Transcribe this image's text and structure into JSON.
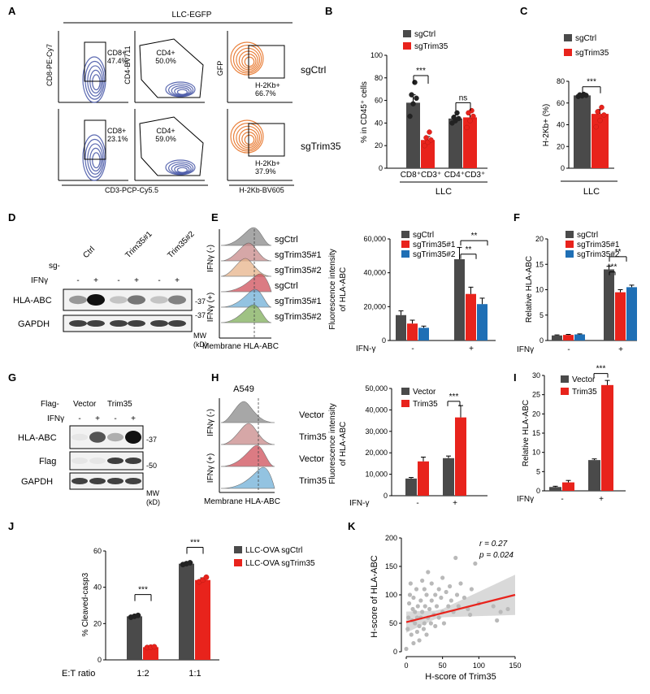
{
  "colors": {
    "ctrl": "#4a4a4a",
    "ko": "#e8231c",
    "ko2": "#1f6fb5",
    "flow_blue": "#4a5aa8",
    "flow_orange": "#e8752a",
    "flow_gray": "#8a8a8a",
    "flow_pink": "#c98a8a",
    "flow_peach": "#e8b48a",
    "flow_red": "#d0505a",
    "flow_lblue": "#6fb0d8",
    "flow_green": "#7fae5a",
    "fit_band": "#cfcfcf",
    "scatter_pt": "#b9b9b9"
  },
  "panels": {
    "A": {
      "letter": "A",
      "header": "LLC-EGFP",
      "ylabels": [
        "CD8-PE-Cy7",
        "CD4-BV711",
        "GFP"
      ],
      "xlabels": [
        "CD3-PCP-Cy5.5",
        "H-2Kb-BV605"
      ],
      "row_labels": [
        "sgCtrl",
        "sgTrim35"
      ],
      "gates": [
        [
          "CD8+",
          "47.4%"
        ],
        [
          "CD4+",
          "50.0%"
        ],
        [
          "H-2Kb+",
          "66.7%"
        ],
        [
          "CD8+",
          "23.1%"
        ],
        [
          "CD4+",
          "59.0%"
        ],
        [
          "H-2Kb+",
          "37.9%"
        ]
      ]
    },
    "B": {
      "letter": "B",
      "ylabel": "% in CD45⁺ cells",
      "legend": [
        "sgCtrl",
        "sgTrim35"
      ],
      "groups": [
        "CD8⁺CD3⁺",
        "CD4⁺CD3⁺"
      ],
      "bottom": "LLC",
      "sig": [
        "***",
        "ns"
      ],
      "ticks": [
        "0",
        "20",
        "40",
        "60",
        "80",
        "100"
      ]
    },
    "C": {
      "letter": "C",
      "ylabel": "H-2Kb+ (%)",
      "legend": [
        "sgCtrl",
        "sgTrim35"
      ],
      "bottom": "LLC",
      "sig": "***",
      "ticks": [
        "0",
        "20",
        "40",
        "60",
        "80"
      ]
    },
    "D": {
      "letter": "D",
      "lanes": [
        "Ctrl",
        "Trim35#1",
        "Trim35#2"
      ],
      "sg": "sg-",
      "ifn": "IFNγ",
      "pm": [
        "-",
        "+",
        "-",
        "+",
        "-",
        "+"
      ],
      "bands": [
        "HLA-ABC",
        "GAPDH"
      ],
      "mw": [
        "37",
        "37"
      ],
      "mw_label": "MW",
      "mw_unit": "(kD)"
    },
    "E": {
      "letter": "E",
      "hist_labels": [
        "sgCtrl",
        "sgTrim35#1",
        "sgTrim35#2",
        "sgCtrl",
        "sgTrim35#1",
        "sgTrim35#2"
      ],
      "side": [
        "IFNγ (-)",
        "IFNγ (+)"
      ],
      "xlabel": "Membrane HLA-ABC",
      "ylabel1": "Fluorescence intensity",
      "ylabel2": "of HLA-ABC",
      "legend": [
        "sgCtrl",
        "sgTrim35#1",
        "sgTrim35#2"
      ],
      "ticks": [
        "0",
        "20,000",
        "40,000",
        "60,000"
      ],
      "xaxis": "IFN-γ",
      "pm": [
        "-",
        "+"
      ],
      "sig": [
        "**",
        "**"
      ]
    },
    "F": {
      "letter": "F",
      "ylabel": "Relative HLA-ABC",
      "legend": [
        "sgCtrl",
        "sgTrim35#1",
        "sgTrim35#2"
      ],
      "ticks": [
        "0",
        "5",
        "10",
        "15",
        "20"
      ],
      "xaxis": "IFNγ",
      "pm": [
        "-",
        "+"
      ],
      "sig": [
        "***",
        "**"
      ]
    },
    "G": {
      "letter": "G",
      "flag": "Flag-",
      "lanes": [
        "Vector",
        "Trim35"
      ],
      "ifn": "IFNγ",
      "pm": [
        "-",
        "+",
        "-",
        "+"
      ],
      "bands": [
        "HLA-ABC",
        "Flag",
        "GAPDH"
      ],
      "mw": [
        "37",
        "50"
      ],
      "mw_label": "MW",
      "mw_unit": "(kD)"
    },
    "H": {
      "letter": "H",
      "title": "A549",
      "hist_labels": [
        "Vector",
        "Trim35",
        "Vector",
        "Trim35"
      ],
      "side": [
        "IFNγ (-)",
        "IFNγ (+)"
      ],
      "xlabel": "Membrane HLA-ABC",
      "ylabel1": "Fluorescence intensity",
      "ylabel2": "of HLA-ABC",
      "legend": [
        "Vector",
        "Trim35"
      ],
      "ticks": [
        "0",
        "10,000",
        "20,000",
        "30,000",
        "40,000",
        "50,000"
      ],
      "xaxis": "IFN-γ",
      "pm": [
        "-",
        "+"
      ],
      "sig": "***"
    },
    "I": {
      "letter": "I",
      "ylabel": "Relative HLA-ABC",
      "legend": [
        "Vector",
        "Trim35"
      ],
      "ticks": [
        "0",
        "5",
        "10",
        "15",
        "20",
        "25",
        "30"
      ],
      "xaxis": "IFNγ",
      "pm": [
        "-",
        "+"
      ],
      "sig": "***"
    },
    "J": {
      "letter": "J",
      "ylabel": "% Cleaved-casp3",
      "legend": [
        "LLC-OVA sgCtrl",
        "LLC-OVA sgTrim35"
      ],
      "xaxis": "E:T ratio",
      "groups": [
        "1:2",
        "1:1"
      ],
      "ticks": [
        "0",
        "20",
        "40",
        "60"
      ],
      "sig": [
        "***",
        "***"
      ]
    },
    "K": {
      "letter": "K",
      "ylabel": "H-score of HLA-ABC",
      "xlabel": "H-score of Trim35",
      "r": "r = 0.27",
      "p": "p = 0.024",
      "xticks": [
        "0",
        "50",
        "100",
        "150"
      ],
      "yticks": [
        "0",
        "50",
        "100",
        "150",
        "200"
      ]
    }
  },
  "chart_data": [
    {
      "panel": "B",
      "type": "bar",
      "categories": [
        "CD8⁺CD3⁺",
        "CD4⁺CD3⁺"
      ],
      "ylabel": "% in CD45⁺ cells",
      "ylim": [
        0,
        100
      ],
      "series": [
        {
          "name": "sgCtrl",
          "values": [
            58,
            44
          ],
          "err": [
            7,
            3
          ],
          "points": [
            [
              46,
              57,
              62,
              65,
              76
            ],
            [
              40,
              42,
              44,
              45,
              49
            ]
          ]
        },
        {
          "name": "sgTrim35",
          "values": [
            25,
            45
          ],
          "err": [
            3,
            5
          ],
          "points": [
            [
              20,
              23,
              25,
              27,
              32
            ],
            [
              36,
              42,
              46,
              49,
              51
            ]
          ]
        }
      ]
    },
    {
      "panel": "C",
      "type": "bar",
      "categories": [
        "LLC"
      ],
      "ylabel": "H-2Kb+ (%)",
      "ylim": [
        0,
        80
      ],
      "series": [
        {
          "name": "sgCtrl",
          "values": [
            67
          ],
          "err": [
            1
          ],
          "points": [
            [
              66,
              66.5,
              67,
              67.5,
              68
            ]
          ]
        },
        {
          "name": "sgTrim35",
          "values": [
            50
          ],
          "err": [
            4
          ],
          "points": [
            [
              38,
              44,
              49,
              52,
              56
            ]
          ]
        }
      ]
    },
    {
      "panel": "E",
      "type": "bar",
      "categories": [
        "-",
        "+"
      ],
      "ylabel": "Fluorescence intensity of HLA-ABC",
      "ylim": [
        0,
        60000
      ],
      "series": [
        {
          "name": "sgCtrl",
          "values": [
            15000,
            48000
          ],
          "err": [
            2500,
            7000
          ]
        },
        {
          "name": "sgTrim35#1",
          "values": [
            10000,
            27500
          ],
          "err": [
            2000,
            4000
          ]
        },
        {
          "name": "sgTrim35#2",
          "values": [
            7500,
            21500
          ],
          "err": [
            1000,
            3500
          ]
        }
      ]
    },
    {
      "panel": "F",
      "type": "bar",
      "categories": [
        "-",
        "+"
      ],
      "ylabel": "Relative HLA-ABC",
      "ylim": [
        0,
        20
      ],
      "series": [
        {
          "name": "sgCtrl",
          "values": [
            1,
            14
          ],
          "err": [
            0.1,
            0.6
          ]
        },
        {
          "name": "sgTrim35#1",
          "values": [
            1.1,
            9.5
          ],
          "err": [
            0.1,
            0.5
          ]
        },
        {
          "name": "sgTrim35#2",
          "values": [
            1.2,
            10.5
          ],
          "err": [
            0.1,
            0.4
          ]
        }
      ]
    },
    {
      "panel": "H",
      "type": "bar",
      "categories": [
        "-",
        "+"
      ],
      "ylabel": "Fluorescence intensity of HLA-ABC",
      "ylim": [
        0,
        50000
      ],
      "series": [
        {
          "name": "Vector",
          "values": [
            8000,
            17500
          ],
          "err": [
            500,
            1000
          ]
        },
        {
          "name": "Trim35",
          "values": [
            16000,
            36500
          ],
          "err": [
            2000,
            5500
          ]
        }
      ]
    },
    {
      "panel": "I",
      "type": "bar",
      "categories": [
        "-",
        "+"
      ],
      "ylabel": "Relative HLA-ABC",
      "ylim": [
        0,
        30
      ],
      "series": [
        {
          "name": "Vector",
          "values": [
            1,
            8
          ],
          "err": [
            0.2,
            0.3
          ]
        },
        {
          "name": "Trim35",
          "values": [
            2.2,
            27.5
          ],
          "err": [
            0.5,
            1.2
          ]
        }
      ]
    },
    {
      "panel": "J",
      "type": "bar",
      "categories": [
        "1:2",
        "1:1"
      ],
      "xlabel": "E:T ratio",
      "ylabel": "% Cleaved-casp3",
      "ylim": [
        0,
        60
      ],
      "series": [
        {
          "name": "LLC-OVA sgCtrl",
          "values": [
            24,
            53
          ],
          "err": [
            0.5,
            0.8
          ],
          "points": [
            [
              23.5,
              24,
              24.5
            ],
            [
              52.5,
              53,
              53.5
            ]
          ]
        },
        {
          "name": "LLC-OVA sgTrim35",
          "values": [
            7,
            44
          ],
          "err": [
            0.3,
            1.2
          ],
          "points": [
            [
              6.8,
              7,
              7.2
            ],
            [
              43,
              44,
              45.5
            ]
          ]
        }
      ]
    },
    {
      "panel": "K",
      "type": "scatter",
      "xlabel": "H-score of Trim35",
      "ylabel": "H-score of HLA-ABC",
      "xlim": [
        0,
        150
      ],
      "ylim": [
        0,
        200
      ],
      "fit": {
        "slope": 0.32,
        "intercept": 52
      },
      "points": [
        [
          0,
          5
        ],
        [
          2,
          40
        ],
        [
          3,
          60
        ],
        [
          4,
          85
        ],
        [
          5,
          100
        ],
        [
          6,
          120
        ],
        [
          7,
          30
        ],
        [
          8,
          55
        ],
        [
          9,
          75
        ],
        [
          10,
          15
        ],
        [
          10,
          95
        ],
        [
          12,
          50
        ],
        [
          12,
          70
        ],
        [
          14,
          110
        ],
        [
          15,
          35
        ],
        [
          15,
          60
        ],
        [
          16,
          80
        ],
        [
          18,
          20
        ],
        [
          18,
          45
        ],
        [
          20,
          60
        ],
        [
          20,
          90
        ],
        [
          22,
          125
        ],
        [
          22,
          70
        ],
        [
          24,
          40
        ],
        [
          25,
          50
        ],
        [
          25,
          110
        ],
        [
          26,
          80
        ],
        [
          28,
          30
        ],
        [
          28,
          100
        ],
        [
          30,
          60
        ],
        [
          30,
          140
        ],
        [
          32,
          75
        ],
        [
          34,
          50
        ],
        [
          35,
          90
        ],
        [
          35,
          120
        ],
        [
          38,
          65
        ],
        [
          40,
          45
        ],
        [
          40,
          100
        ],
        [
          42,
          80
        ],
        [
          45,
          60
        ],
        [
          45,
          110
        ],
        [
          48,
          95
        ],
        [
          50,
          70
        ],
        [
          50,
          130
        ],
        [
          52,
          50
        ],
        [
          55,
          105
        ],
        [
          58,
          80
        ],
        [
          60,
          115
        ],
        [
          62,
          90
        ],
        [
          65,
          70
        ],
        [
          68,
          165
        ],
        [
          70,
          100
        ],
        [
          72,
          80
        ],
        [
          75,
          120
        ],
        [
          80,
          95
        ],
        [
          85,
          75
        ],
        [
          88,
          65
        ],
        [
          90,
          110
        ],
        [
          95,
          155
        ],
        [
          100,
          85
        ],
        [
          120,
          80
        ],
        [
          125,
          55
        ],
        [
          130,
          70
        ],
        [
          140,
          75
        ]
      ]
    }
  ]
}
